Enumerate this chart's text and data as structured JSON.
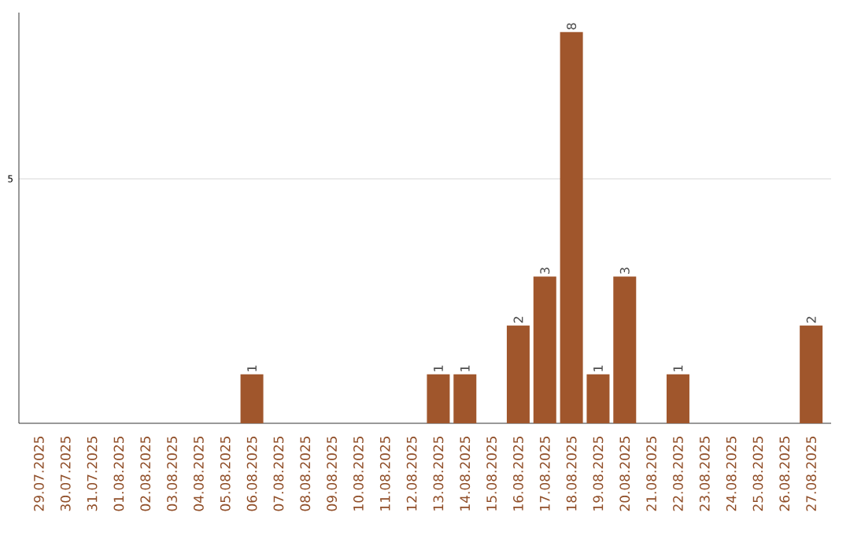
{
  "chart_data": {
    "type": "bar",
    "categories": [
      "29.07.2025",
      "30.07.2025",
      "31.07.2025",
      "01.08.2025",
      "02.08.2025",
      "03.08.2025",
      "04.08.2025",
      "05.08.2025",
      "06.08.2025",
      "07.08.2025",
      "08.08.2025",
      "09.08.2025",
      "10.08.2025",
      "11.08.2025",
      "12.08.2025",
      "13.08.2025",
      "14.08.2025",
      "15.08.2025",
      "16.08.2025",
      "17.08.2025",
      "18.08.2025",
      "19.08.2025",
      "20.08.2025",
      "21.08.2025",
      "22.08.2025",
      "23.08.2025",
      "24.08.2025",
      "25.08.2025",
      "26.08.2025",
      "27.08.2025"
    ],
    "values": [
      0,
      0,
      0,
      0,
      0,
      0,
      0,
      0,
      1,
      0,
      0,
      0,
      0,
      0,
      0,
      1,
      1,
      0,
      2,
      3,
      8,
      1,
      3,
      0,
      1,
      0,
      0,
      0,
      0,
      2
    ],
    "value_labels": [
      null,
      null,
      null,
      null,
      null,
      null,
      null,
      null,
      "1",
      null,
      null,
      null,
      null,
      null,
      null,
      "1",
      "1",
      null,
      "2",
      "3",
      "8",
      "1",
      "3",
      null,
      "1",
      null,
      null,
      null,
      null,
      "2"
    ],
    "color": "#a0562c",
    "ylim": [
      0,
      8.4
    ],
    "yticks": [
      5
    ],
    "grid": "y"
  }
}
